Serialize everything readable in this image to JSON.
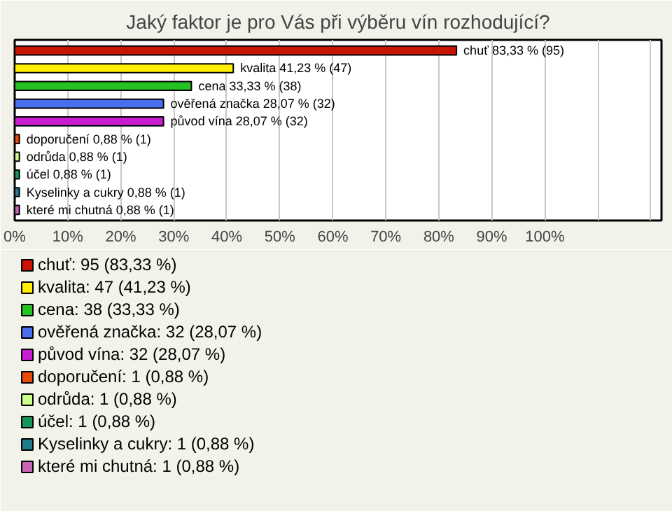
{
  "chart_data": {
    "type": "bar",
    "orientation": "horizontal",
    "title": "Jaký faktor je pro Vás při výběru vín rozhodující?",
    "categories": [
      null,
      null,
      null,
      null,
      null,
      null,
      null,
      null,
      null,
      null
    ],
    "series": [
      {
        "name": "chuť: 95 (83,33 %)",
        "color": "#c81400",
        "values": [
          83.33,
          null,
          null,
          null,
          null,
          null,
          null,
          null,
          null,
          null
        ],
        "value_labels": [
          "chuť 83,33 % (95)",
          null,
          null,
          null,
          null,
          null,
          null,
          null,
          null,
          null
        ]
      },
      {
        "name": "kvalita: 47 (41,23 %)",
        "color": "#ffee00",
        "values": [
          null,
          41.23,
          null,
          null,
          null,
          null,
          null,
          null,
          null,
          null
        ],
        "value_labels": [
          null,
          "kvalita 41,23 % (47)",
          null,
          null,
          null,
          null,
          null,
          null,
          null,
          null
        ]
      },
      {
        "name": "cena: 38 (33,33 %)",
        "color": "#22c322",
        "values": [
          null,
          null,
          33.33,
          null,
          null,
          null,
          null,
          null,
          null,
          null
        ],
        "value_labels": [
          null,
          null,
          "cena 33,33 % (38)",
          null,
          null,
          null,
          null,
          null,
          null,
          null
        ]
      },
      {
        "name": "ověřená značka: 32 (28,07 %)",
        "color": "#4a6ef0",
        "values": [
          null,
          null,
          null,
          28.07,
          null,
          null,
          null,
          null,
          null,
          null
        ],
        "value_labels": [
          null,
          null,
          null,
          "ověřená značka 28,07 % (32)",
          null,
          null,
          null,
          null,
          null,
          null
        ]
      },
      {
        "name": "původ vína: 32 (28,07 %)",
        "color": "#c81ed2",
        "values": [
          null,
          null,
          null,
          null,
          28.07,
          null,
          null,
          null,
          null,
          null
        ],
        "value_labels": [
          null,
          null,
          null,
          null,
          "původ vína 28,07 % (32)",
          null,
          null,
          null,
          null,
          null
        ]
      },
      {
        "name": "doporučení: 1 (0,88 %)",
        "color": "#e84a0a",
        "values": [
          null,
          null,
          null,
          null,
          null,
          0.88,
          null,
          null,
          null,
          null
        ],
        "value_labels": [
          null,
          null,
          null,
          null,
          null,
          "doporučení 0,88 % (1)",
          null,
          null,
          null,
          null
        ]
      },
      {
        "name": "odrůda: 1 (0,88 %)",
        "color": "#ccff88",
        "values": [
          null,
          null,
          null,
          null,
          null,
          null,
          0.88,
          null,
          null,
          null
        ],
        "value_labels": [
          null,
          null,
          null,
          null,
          null,
          null,
          "odrůda 0,88 % (1)",
          null,
          null,
          null
        ]
      },
      {
        "name": "účel: 1 (0,88 %)",
        "color": "#16965a",
        "values": [
          null,
          null,
          null,
          null,
          null,
          null,
          null,
          0.88,
          null,
          null
        ],
        "value_labels": [
          null,
          null,
          null,
          null,
          null,
          null,
          null,
          "účel 0,88 % (1)",
          null,
          null
        ]
      },
      {
        "name": "Kyselinky a cukry: 1 (0,88 %)",
        "color": "#237a8c",
        "values": [
          null,
          null,
          null,
          null,
          null,
          null,
          null,
          null,
          0.88,
          null
        ],
        "value_labels": [
          null,
          null,
          null,
          null,
          null,
          null,
          null,
          null,
          "Kyselinky a cukry 0,88 % (1)",
          null
        ]
      },
      {
        "name": "které mi chutná: 1 (0,88 %)",
        "color": "#c864b4",
        "values": [
          null,
          null,
          null,
          null,
          null,
          null,
          null,
          null,
          null,
          0.88
        ],
        "value_labels": [
          null,
          null,
          null,
          null,
          null,
          null,
          null,
          null,
          null,
          "které mi chutná 0,88 % (1)"
        ]
      }
    ],
    "xlim": [
      0,
      122
    ],
    "xticks": [
      {
        "value": 0,
        "label": "0%"
      },
      {
        "value": 10,
        "label": "10%"
      },
      {
        "value": 20,
        "label": "20%"
      },
      {
        "value": 30,
        "label": "30%"
      },
      {
        "value": 40,
        "label": "40%"
      },
      {
        "value": 50,
        "label": "50%"
      },
      {
        "value": 60,
        "label": "60%"
      },
      {
        "value": 70,
        "label": "70%"
      },
      {
        "value": 80,
        "label": "80%"
      },
      {
        "value": 90,
        "label": "90%"
      },
      {
        "value": 100,
        "label": "100%"
      },
      {
        "value": 110,
        "label": null
      },
      {
        "value": 120,
        "label": null
      }
    ],
    "grid": "x",
    "legend": "bottom"
  }
}
